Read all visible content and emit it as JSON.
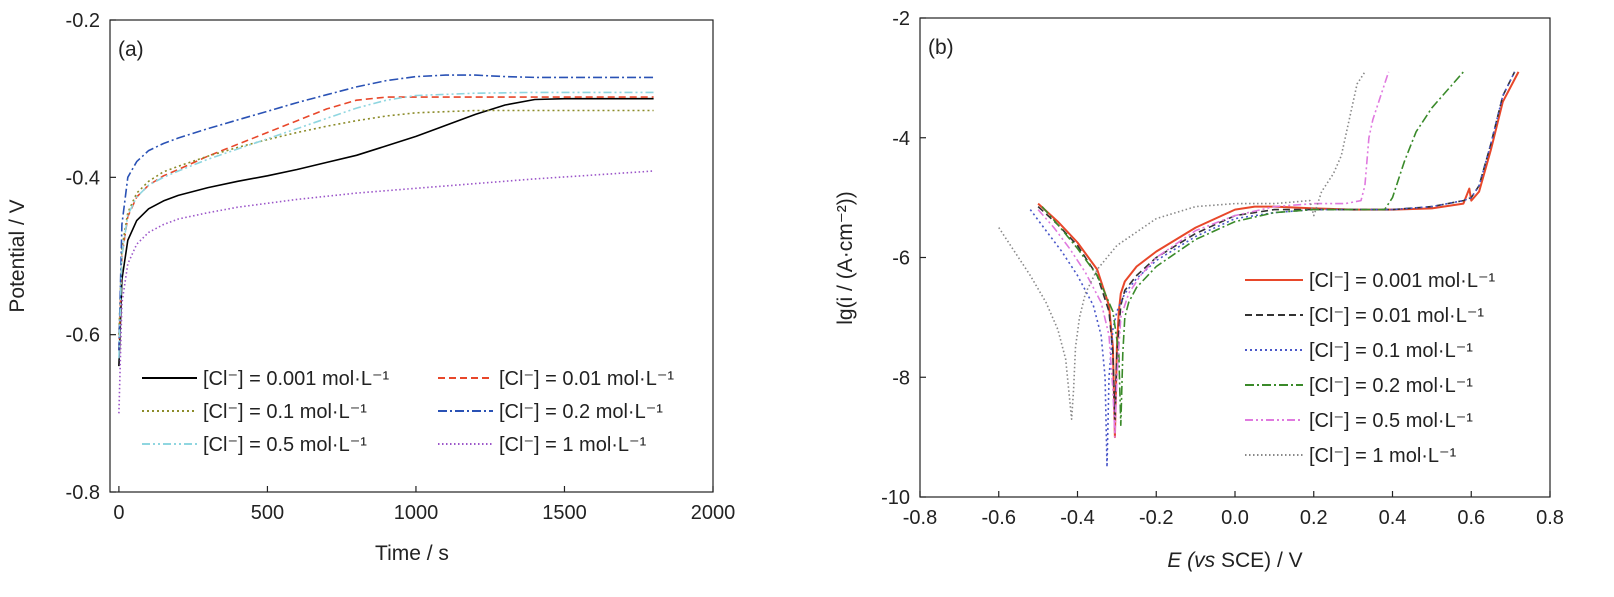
{
  "chart_data": [
    {
      "type": "line",
      "panel_label": "(a)",
      "xlabel": "Time / s",
      "ylabel": "Potential / V",
      "xlim": [
        -30,
        2000
      ],
      "ylim": [
        -0.8,
        -0.2
      ],
      "xticks": [
        0,
        500,
        1000,
        1500,
        2000
      ],
      "xtick_labels": [
        "0",
        "500",
        "1000",
        "1500",
        "2000"
      ],
      "yticks": [
        -0.8,
        -0.6,
        -0.4,
        -0.2
      ],
      "ytick_labels": [
        "-0.8",
        "-0.6",
        "-0.4",
        "-0.2"
      ],
      "grid": false,
      "legend_position": "bottom, two columns",
      "series": [
        {
          "name": "[Cl⁻] = 0.001 mol·L⁻¹",
          "color": "#000000",
          "dash": "solid",
          "x": [
            0,
            10,
            30,
            60,
            100,
            150,
            200,
            300,
            400,
            500,
            600,
            700,
            800,
            900,
            1000,
            1100,
            1200,
            1300,
            1400,
            1500,
            1600,
            1700,
            1800
          ],
          "y": [
            -0.64,
            -0.53,
            -0.48,
            -0.455,
            -0.44,
            -0.43,
            -0.423,
            -0.413,
            -0.405,
            -0.398,
            -0.39,
            -0.381,
            -0.372,
            -0.36,
            -0.348,
            -0.334,
            -0.32,
            -0.308,
            -0.301,
            -0.3,
            -0.3,
            -0.3,
            -0.3
          ]
        },
        {
          "name": "[Cl⁻] = 0.01 mol·L⁻¹",
          "color": "#e8472a",
          "dash": "dash",
          "x": [
            0,
            10,
            30,
            60,
            100,
            150,
            200,
            300,
            400,
            500,
            600,
            700,
            800,
            900,
            1000,
            1200,
            1400,
            1600,
            1800
          ],
          "y": [
            -0.62,
            -0.5,
            -0.45,
            -0.425,
            -0.41,
            -0.398,
            -0.39,
            -0.373,
            -0.358,
            -0.343,
            -0.328,
            -0.313,
            -0.302,
            -0.298,
            -0.298,
            -0.298,
            -0.298,
            -0.298,
            -0.298
          ]
        },
        {
          "name": "[Cl⁻] = 0.1 mol·L⁻¹",
          "color": "#8c8c2a",
          "dash": "dot",
          "x": [
            0,
            10,
            30,
            60,
            100,
            150,
            200,
            300,
            400,
            500,
            600,
            700,
            800,
            900,
            1000,
            1200,
            1400,
            1600,
            1800
          ],
          "y": [
            -0.6,
            -0.49,
            -0.445,
            -0.42,
            -0.405,
            -0.393,
            -0.386,
            -0.373,
            -0.362,
            -0.352,
            -0.343,
            -0.335,
            -0.328,
            -0.322,
            -0.318,
            -0.315,
            -0.315,
            -0.315,
            -0.315
          ]
        },
        {
          "name": "[Cl⁻] = 0.2 mol·L⁻¹",
          "color": "#2a52b5",
          "dash": "dashdot",
          "x": [
            0,
            10,
            30,
            60,
            100,
            150,
            200,
            300,
            400,
            500,
            600,
            700,
            800,
            900,
            1000,
            1100,
            1200,
            1300,
            1400,
            1600,
            1800
          ],
          "y": [
            -0.62,
            -0.46,
            -0.4,
            -0.38,
            -0.366,
            -0.357,
            -0.35,
            -0.338,
            -0.327,
            -0.316,
            -0.305,
            -0.295,
            -0.285,
            -0.277,
            -0.272,
            -0.27,
            -0.27,
            -0.272,
            -0.273,
            -0.273,
            -0.273
          ]
        },
        {
          "name": "[Cl⁻] = 0.5 mol·L⁻¹",
          "color": "#8fd6e0",
          "dash": "dashdotdot",
          "x": [
            0,
            10,
            30,
            60,
            100,
            150,
            200,
            300,
            400,
            500,
            600,
            700,
            800,
            900,
            1000,
            1200,
            1400,
            1600,
            1800
          ],
          "y": [
            -0.63,
            -0.5,
            -0.448,
            -0.425,
            -0.41,
            -0.4,
            -0.392,
            -0.377,
            -0.364,
            -0.351,
            -0.338,
            -0.325,
            -0.312,
            -0.302,
            -0.296,
            -0.293,
            -0.292,
            -0.292,
            -0.292
          ]
        },
        {
          "name": "[Cl⁻] = 1 mol·L⁻¹",
          "color": "#9b55c9",
          "dash": "shortdot",
          "x": [
            0,
            10,
            30,
            60,
            100,
            150,
            200,
            300,
            400,
            500,
            600,
            800,
            1000,
            1200,
            1400,
            1600,
            1800
          ],
          "y": [
            -0.7,
            -0.56,
            -0.51,
            -0.485,
            -0.47,
            -0.46,
            -0.453,
            -0.445,
            -0.438,
            -0.433,
            -0.428,
            -0.42,
            -0.414,
            -0.408,
            -0.402,
            -0.397,
            -0.392
          ]
        }
      ]
    },
    {
      "type": "line",
      "panel_label": "(b)",
      "xlabel_italic": "E",
      "xlabel_rest": "(vs SCE) / V",
      "xlabel_vs": "vs",
      "ylabel": "lg(i / (A·cm⁻²))",
      "xlim": [
        -0.8,
        0.8
      ],
      "ylim": [
        -10,
        -2
      ],
      "xticks": [
        -0.8,
        -0.6,
        -0.4,
        -0.2,
        0.0,
        0.2,
        0.4,
        0.6,
        0.8
      ],
      "xtick_labels": [
        "-0.8",
        "-0.6",
        "-0.4",
        "-0.2",
        "0.0",
        "0.2",
        "0.4",
        "0.6",
        "0.8"
      ],
      "yticks": [
        -10,
        -8,
        -6,
        -4,
        -2
      ],
      "ytick_labels": [
        "-10",
        "-8",
        "-6",
        "-4",
        "-2"
      ],
      "grid": false,
      "legend_position": "lower right",
      "series": [
        {
          "name": "[Cl⁻] = 0.001 mol·L⁻¹",
          "color": "#e8472a",
          "dash": "solid",
          "x": [
            -0.5,
            -0.45,
            -0.4,
            -0.35,
            -0.32,
            -0.31,
            -0.305,
            -0.3,
            -0.295,
            -0.29,
            -0.28,
            -0.25,
            -0.2,
            -0.1,
            0.0,
            0.05,
            0.1,
            0.2,
            0.3,
            0.4,
            0.5,
            0.58,
            0.595,
            0.6,
            0.62,
            0.65,
            0.68,
            0.72
          ],
          "y": [
            -5.1,
            -5.4,
            -5.75,
            -6.2,
            -6.8,
            -7.5,
            -9.0,
            -7.5,
            -6.9,
            -6.6,
            -6.4,
            -6.15,
            -5.9,
            -5.5,
            -5.2,
            -5.15,
            -5.15,
            -5.18,
            -5.2,
            -5.2,
            -5.18,
            -5.1,
            -4.85,
            -5.05,
            -4.9,
            -4.2,
            -3.4,
            -2.9
          ]
        },
        {
          "name": "[Cl⁻] = 0.01 mol·L⁻¹",
          "color": "#333333",
          "dash": "dash",
          "x": [
            -0.5,
            -0.45,
            -0.4,
            -0.35,
            -0.32,
            -0.31,
            -0.305,
            -0.3,
            -0.29,
            -0.28,
            -0.25,
            -0.2,
            -0.1,
            0.0,
            0.1,
            0.2,
            0.3,
            0.4,
            0.5,
            0.58,
            0.6,
            0.62,
            0.65,
            0.68,
            0.71
          ],
          "y": [
            -5.15,
            -5.45,
            -5.8,
            -6.3,
            -6.9,
            -7.6,
            -8.7,
            -7.6,
            -6.8,
            -6.55,
            -6.3,
            -6.0,
            -5.6,
            -5.3,
            -5.2,
            -5.2,
            -5.2,
            -5.2,
            -5.15,
            -5.05,
            -5.0,
            -4.8,
            -4.1,
            -3.3,
            -2.9
          ]
        },
        {
          "name": "[Cl⁻] = 0.1 mol·L⁻¹",
          "color": "#4a57c9",
          "dash": "dot",
          "x": [
            -0.52,
            -0.48,
            -0.44,
            -0.4,
            -0.36,
            -0.34,
            -0.33,
            -0.325,
            -0.32,
            -0.31,
            -0.3,
            -0.28,
            -0.25,
            -0.2,
            -0.1,
            0.0,
            0.1,
            0.2,
            0.3,
            0.4,
            0.5,
            0.58,
            0.6,
            0.62,
            0.65,
            0.68,
            0.71
          ],
          "y": [
            -5.2,
            -5.55,
            -5.9,
            -6.3,
            -6.8,
            -7.3,
            -8.0,
            -9.5,
            -8.0,
            -7.2,
            -6.9,
            -6.6,
            -6.35,
            -6.05,
            -5.65,
            -5.35,
            -5.25,
            -5.2,
            -5.2,
            -5.2,
            -5.15,
            -5.05,
            -5.0,
            -4.8,
            -4.1,
            -3.3,
            -2.9
          ]
        },
        {
          "name": "[Cl⁻] = 0.2 mol·L⁻¹",
          "color": "#3a8a2a",
          "dash": "dashdot",
          "x": [
            -0.49,
            -0.45,
            -0.4,
            -0.35,
            -0.31,
            -0.295,
            -0.29,
            -0.285,
            -0.28,
            -0.27,
            -0.25,
            -0.2,
            -0.1,
            0.0,
            0.1,
            0.2,
            0.3,
            0.38,
            0.4,
            0.43,
            0.46,
            0.5,
            0.54,
            0.58
          ],
          "y": [
            -5.15,
            -5.45,
            -5.85,
            -6.3,
            -6.9,
            -7.6,
            -8.8,
            -7.6,
            -7.0,
            -6.75,
            -6.5,
            -6.15,
            -5.7,
            -5.4,
            -5.25,
            -5.2,
            -5.2,
            -5.2,
            -5.0,
            -4.4,
            -3.9,
            -3.5,
            -3.2,
            -2.9
          ]
        },
        {
          "name": "[Cl⁻] = 0.5 mol·L⁻¹",
          "color": "#e07adf",
          "dash": "dashdotdot",
          "x": [
            -0.5,
            -0.46,
            -0.42,
            -0.38,
            -0.34,
            -0.32,
            -0.31,
            -0.305,
            -0.3,
            -0.29,
            -0.27,
            -0.24,
            -0.2,
            -0.1,
            0.0,
            0.1,
            0.2,
            0.28,
            0.32,
            0.33,
            0.34,
            0.35,
            0.37,
            0.39
          ],
          "y": [
            -5.2,
            -5.5,
            -5.85,
            -6.25,
            -6.75,
            -7.3,
            -8.2,
            -9.0,
            -8.0,
            -7.0,
            -6.6,
            -6.3,
            -6.0,
            -5.55,
            -5.3,
            -5.15,
            -5.1,
            -5.1,
            -5.05,
            -4.8,
            -4.0,
            -3.7,
            -3.3,
            -2.9
          ]
        },
        {
          "name": "[Cl⁻] = 1 mol·L⁻¹",
          "color": "#888888",
          "dash": "shortdot",
          "x": [
            -0.6,
            -0.56,
            -0.52,
            -0.48,
            -0.45,
            -0.43,
            -0.415,
            -0.41,
            -0.405,
            -0.395,
            -0.38,
            -0.35,
            -0.3,
            -0.2,
            -0.1,
            0.0,
            0.1,
            0.19,
            0.2,
            0.22,
            0.25,
            0.27,
            0.29,
            0.31,
            0.33
          ],
          "y": [
            -5.5,
            -5.9,
            -6.3,
            -6.75,
            -7.2,
            -7.7,
            -8.7,
            -8.2,
            -7.5,
            -7.0,
            -6.6,
            -6.2,
            -5.8,
            -5.35,
            -5.15,
            -5.1,
            -5.1,
            -5.05,
            -5.3,
            -4.9,
            -4.6,
            -4.3,
            -3.7,
            -3.1,
            -2.9
          ]
        }
      ]
    }
  ]
}
